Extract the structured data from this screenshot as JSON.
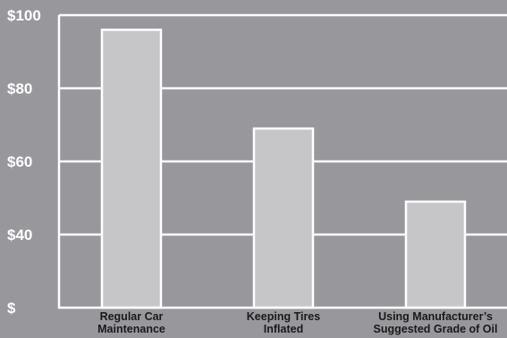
{
  "chart_data": {
    "type": "bar",
    "categories": [
      [
        "Regular Car",
        "Maintenance"
      ],
      [
        "Keeping Tires",
        "Inflated"
      ],
      [
        "Using Manufacturer’s",
        "Suggested Grade of Oil"
      ]
    ],
    "values": [
      96,
      69,
      49
    ],
    "yticks": [
      {
        "value": 100,
        "label": "$100"
      },
      {
        "value": 80,
        "label": "$80"
      },
      {
        "value": 60,
        "label": "$60"
      },
      {
        "value": 40,
        "label": "$40"
      },
      {
        "value": 20,
        "label": "$"
      }
    ],
    "ylim": [
      20,
      100
    ],
    "grid": true,
    "title": "",
    "xlabel": "",
    "ylabel": "",
    "colors": {
      "background": "#98979c",
      "bar_fill": "#c6c6c9",
      "bar_stroke": "#ffffff",
      "grid": "#ffffff",
      "tick_text": "#ffffff",
      "category_text": "#1a1a1a"
    }
  }
}
